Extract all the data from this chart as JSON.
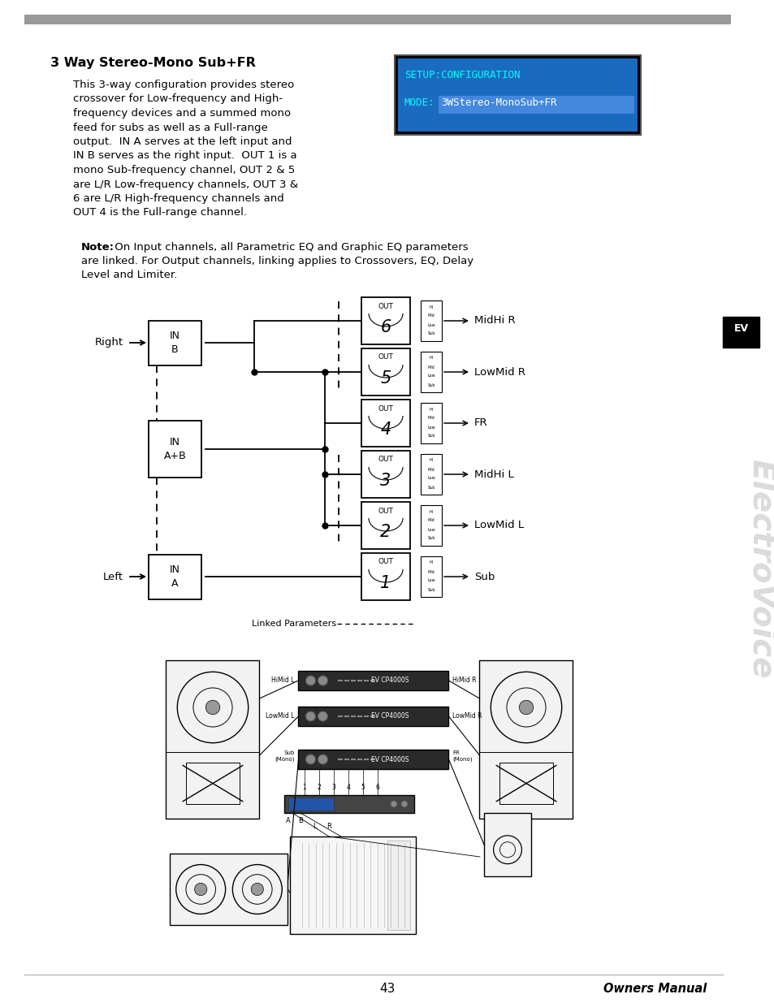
{
  "title": "3 Way Stereo-Mono Sub+FR",
  "body_text_lines": [
    "This 3-way configuration provides stereo",
    "crossover for Low-frequency and High-",
    "frequency devices and a summed mono",
    "feed for subs as well as a Full-range",
    "output.  IN A serves at the left input and",
    "IN B serves as the right input.  OUT 1 is a",
    "mono Sub-frequency channel, OUT 2 & 5",
    "are L/R Low-frequency channels, OUT 3 &",
    "6 are L/R High-frequency channels and",
    "OUT 4 is the Full-range channel."
  ],
  "note_bold": "Note:",
  "note_rest": " On Input channels, all Parametric EQ and Graphic EQ parameters",
  "note_line2": "are linked. For Output channels, linking applies to Crossovers, EQ, Delay",
  "note_line3": "Level and Limiter.",
  "lcd_line1": "SETUP:CONFIGURATION",
  "lcd_line2_plain": "MODE:",
  "lcd_line2_highlight": "3WStereo-MonoSub+FR",
  "lcd_bg": "#1a6bbf",
  "lcd_text_color": "#00ffff",
  "lcd_highlight_bg": "#3399ff",
  "page_number": "43",
  "footer_text": "Owners Manual",
  "header_bar_color": "#999999",
  "linked_params_label": "Linked Parameters",
  "out_labels": [
    "MidHi R",
    "LowMid R",
    "FR",
    "MidHi L",
    "LowMid L",
    "Sub"
  ],
  "out_nums": [
    "6",
    "5",
    "4",
    "3",
    "2",
    "1"
  ]
}
